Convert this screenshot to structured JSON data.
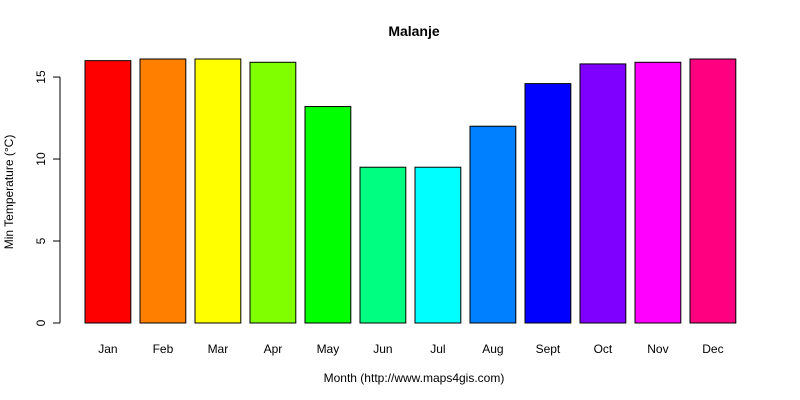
{
  "chart_data": {
    "type": "bar",
    "title": "Malanje",
    "xlabel": "Month (http://www.maps4gis.com)",
    "ylabel": "Min Temperature (°C)",
    "categories": [
      "Jan",
      "Feb",
      "Mar",
      "Apr",
      "May",
      "Jun",
      "Jul",
      "Aug",
      "Sept",
      "Oct",
      "Nov",
      "Dec"
    ],
    "values": [
      16.0,
      16.1,
      16.1,
      15.9,
      13.2,
      9.5,
      9.5,
      12.0,
      14.6,
      15.8,
      15.9,
      16.1
    ],
    "colors": [
      "#FF0000",
      "#FF8000",
      "#FFFF00",
      "#80FF00",
      "#00FF00",
      "#00FF80",
      "#00FFFF",
      "#0080FF",
      "#0000FF",
      "#8000FF",
      "#FF00FF",
      "#FF0080"
    ],
    "ylim": [
      0,
      16.1
    ],
    "yticks": [
      0,
      5,
      10,
      15
    ],
    "grid": false,
    "legend": "none"
  }
}
